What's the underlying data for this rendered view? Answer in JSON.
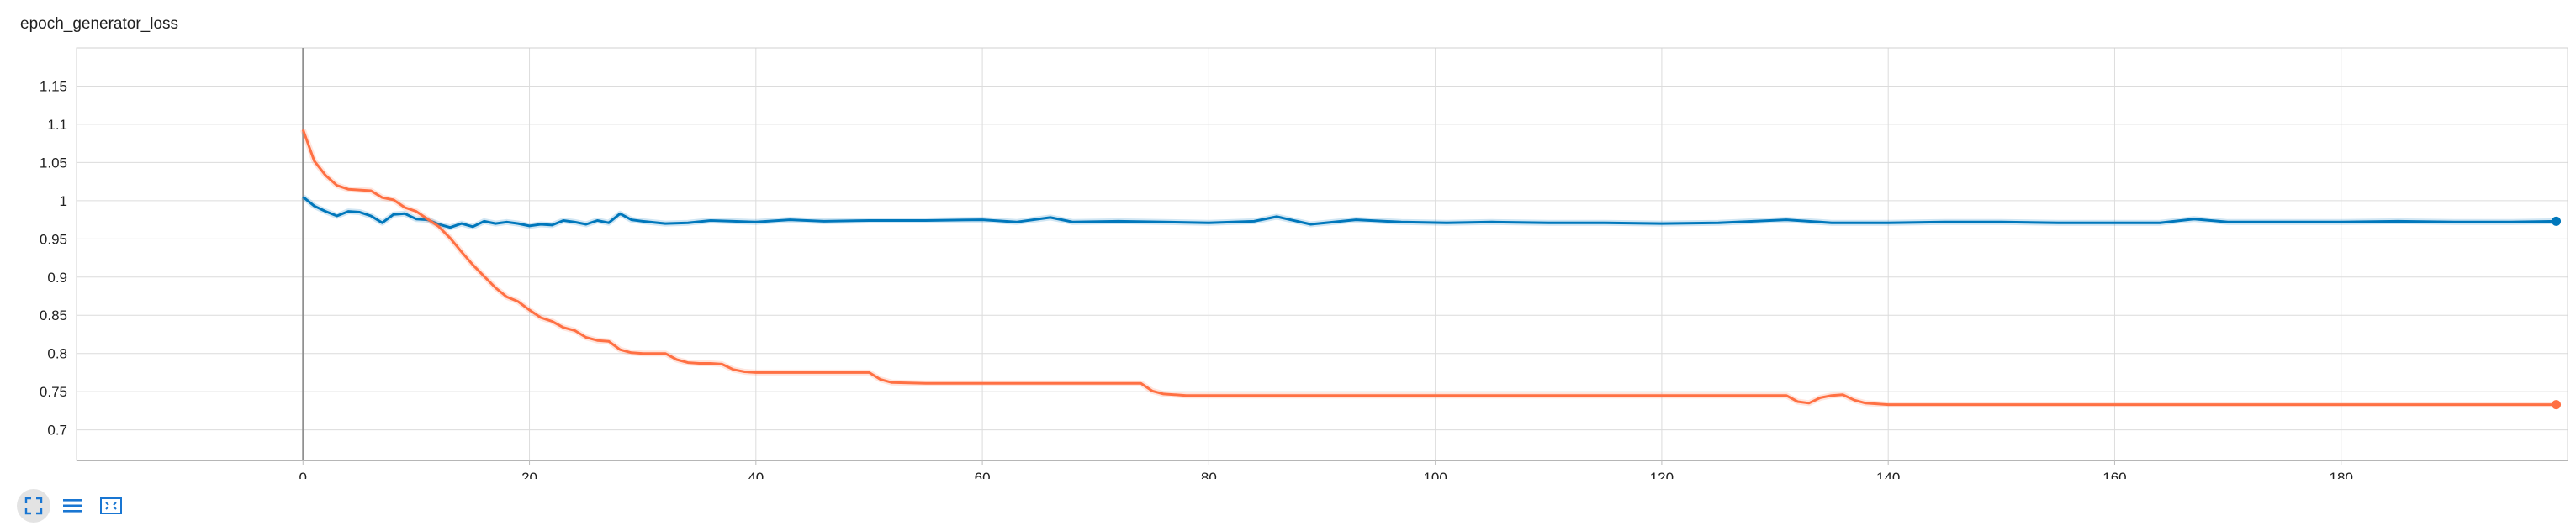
{
  "chart_data": {
    "type": "line",
    "title": "epoch_generator_loss",
    "xlabel": "",
    "ylabel": "",
    "xlim": [
      -20,
      200
    ],
    "ylim": [
      0.66,
      1.2
    ],
    "x_ticks": [
      0,
      20,
      40,
      60,
      80,
      100,
      120,
      140,
      160,
      180
    ],
    "y_ticks": [
      0.7,
      0.75,
      0.8,
      0.85,
      0.9,
      0.95,
      1,
      1.05,
      1.1,
      1.15
    ],
    "x_tick_labels": [
      "0",
      "20",
      "40",
      "60",
      "80",
      "100",
      "120",
      "140",
      "160",
      "180"
    ],
    "y_tick_labels": [
      "0.7",
      "0.75",
      "0.8",
      "0.85",
      "0.9",
      "0.95",
      "1",
      "1.05",
      "1.1",
      "1.15"
    ],
    "grid": true,
    "series": [
      {
        "color": "#0077bb",
        "x": [
          0,
          1,
          2,
          3,
          4,
          5,
          6,
          7,
          8,
          9,
          10,
          11,
          12,
          13,
          14,
          15,
          16,
          17,
          18,
          19,
          20,
          21,
          22,
          23,
          24,
          25,
          26,
          27,
          28,
          29,
          30,
          32,
          34,
          36,
          38,
          40,
          43,
          46,
          50,
          55,
          60,
          63,
          66,
          68,
          72,
          76,
          80,
          84,
          86,
          89,
          93,
          97,
          101,
          105,
          110,
          115,
          120,
          125,
          131,
          135,
          140,
          145,
          150,
          155,
          160,
          164,
          167,
          170,
          175,
          180,
          185,
          190,
          195,
          199
        ],
        "y": [
          1.005,
          0.993,
          0.986,
          0.98,
          0.986,
          0.985,
          0.98,
          0.971,
          0.982,
          0.983,
          0.976,
          0.975,
          0.969,
          0.965,
          0.97,
          0.966,
          0.973,
          0.97,
          0.972,
          0.97,
          0.967,
          0.969,
          0.968,
          0.974,
          0.972,
          0.969,
          0.974,
          0.971,
          0.983,
          0.975,
          0.973,
          0.97,
          0.971,
          0.974,
          0.973,
          0.972,
          0.975,
          0.973,
          0.974,
          0.974,
          0.975,
          0.972,
          0.978,
          0.972,
          0.973,
          0.972,
          0.971,
          0.973,
          0.979,
          0.969,
          0.975,
          0.972,
          0.971,
          0.972,
          0.971,
          0.971,
          0.97,
          0.971,
          0.975,
          0.971,
          0.971,
          0.972,
          0.972,
          0.971,
          0.971,
          0.971,
          0.976,
          0.972,
          0.972,
          0.972,
          0.973,
          0.972,
          0.972,
          0.973
        ]
      },
      {
        "color": "#ff7043",
        "x": [
          0,
          1,
          2,
          3,
          4,
          5,
          6,
          7,
          8,
          9,
          10,
          11,
          12,
          13,
          14,
          15,
          16,
          17,
          18,
          19,
          20,
          21,
          22,
          23,
          24,
          25,
          26,
          27,
          28,
          29,
          30,
          31,
          32,
          33,
          34,
          35,
          36,
          37,
          38,
          39,
          40,
          45,
          50,
          51,
          52,
          55,
          60,
          65,
          70,
          74,
          75,
          76,
          78,
          80,
          90,
          100,
          110,
          120,
          131,
          132,
          133,
          134,
          135,
          136,
          137,
          138,
          140,
          150,
          160,
          170,
          180,
          190,
          199
        ],
        "y": [
          1.093,
          1.052,
          1.033,
          1.02,
          1.015,
          1.014,
          1.013,
          1.004,
          1.001,
          0.991,
          0.986,
          0.976,
          0.966,
          0.951,
          0.933,
          0.916,
          0.901,
          0.886,
          0.874,
          0.868,
          0.857,
          0.847,
          0.842,
          0.834,
          0.83,
          0.821,
          0.817,
          0.816,
          0.805,
          0.801,
          0.8,
          0.8,
          0.8,
          0.792,
          0.788,
          0.787,
          0.787,
          0.786,
          0.779,
          0.776,
          0.775,
          0.775,
          0.775,
          0.766,
          0.762,
          0.761,
          0.761,
          0.761,
          0.761,
          0.761,
          0.751,
          0.747,
          0.745,
          0.745,
          0.745,
          0.745,
          0.745,
          0.745,
          0.745,
          0.737,
          0.735,
          0.742,
          0.745,
          0.746,
          0.739,
          0.735,
          0.733,
          0.733,
          0.733,
          0.733,
          0.733,
          0.733,
          0.733
        ]
      }
    ]
  },
  "toolbar": {
    "icons": [
      "fullscreen-icon",
      "list-icon",
      "fit-domain-icon"
    ],
    "accent": "#1976d2"
  }
}
